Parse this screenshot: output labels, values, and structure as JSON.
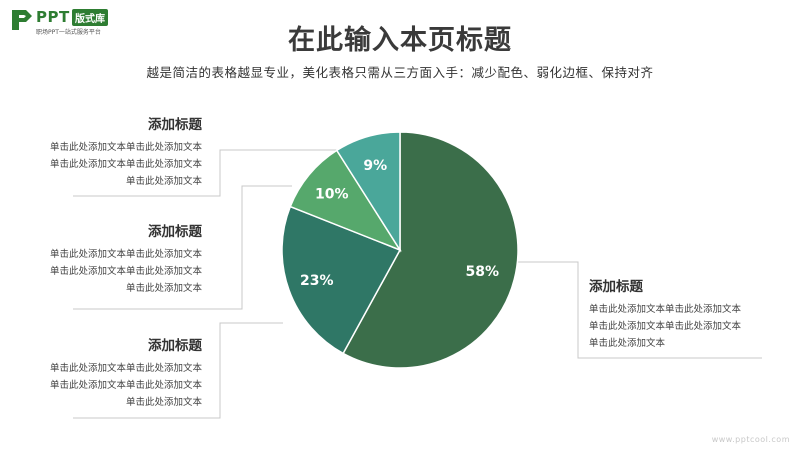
{
  "logo": {
    "text": "PPT",
    "badge": "版式库",
    "tagline": "职场PPT一站式服务平台"
  },
  "header": {
    "title": "在此输入本页标题",
    "subtitle": "越是简洁的表格越显专业，美化表格只需从三方面入手：减少配色、弱化边框、保持对齐"
  },
  "blocks": [
    {
      "title": "添加标题",
      "body": "单击此处添加文本单击此处添加文本单击此处添加文本单击此处添加文本单击此处添加文本"
    },
    {
      "title": "添加标题",
      "body": "单击此处添加文本单击此处添加文本单击此处添加文本单击此处添加文本单击此处添加文本"
    },
    {
      "title": "添加标题",
      "body": "单击此处添加文本单击此处添加文本单击此处添加文本单击此处添加文本单击此处添加文本"
    },
    {
      "title": "添加标题",
      "body": "单击此处添加文本单击此处添加文本单击此处添加文本单击此处添加文本单击此处添加文本"
    }
  ],
  "chart_data": {
    "type": "pie",
    "slices": [
      {
        "label": "58%",
        "value": 58,
        "color": "#3b6e4a"
      },
      {
        "label": "23%",
        "value": 23,
        "color": "#2f7766"
      },
      {
        "label": "10%",
        "value": 10,
        "color": "#56a86c"
      },
      {
        "label": "9%",
        "value": 9,
        "color": "#4aa79a"
      }
    ],
    "start": "top",
    "direction": "clockwise"
  },
  "watermark": "www.pptcool.com"
}
